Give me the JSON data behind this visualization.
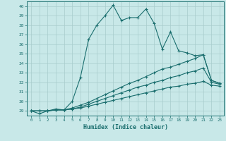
{
  "xlabel": "Humidex (Indice chaleur)",
  "xlim": [
    -0.5,
    23.5
  ],
  "ylim": [
    28.5,
    40.5
  ],
  "yticks": [
    29,
    30,
    31,
    32,
    33,
    34,
    35,
    36,
    37,
    38,
    39,
    40
  ],
  "xticks": [
    0,
    1,
    2,
    3,
    4,
    5,
    6,
    7,
    8,
    9,
    10,
    11,
    12,
    13,
    14,
    15,
    16,
    17,
    18,
    19,
    20,
    21,
    22,
    23
  ],
  "background_color": "#c8e8e8",
  "grid_color": "#a8cccc",
  "line_color": "#1a6e6e",
  "line1_y": [
    29.0,
    28.7,
    29.0,
    29.2,
    29.1,
    30.0,
    32.5,
    36.5,
    38.0,
    39.0,
    40.1,
    38.5,
    38.8,
    38.8,
    39.7,
    38.2,
    35.5,
    37.3,
    35.3,
    35.1,
    34.8,
    34.9,
    32.2,
    31.9
  ],
  "line2_y": [
    29.0,
    29.0,
    29.0,
    29.1,
    29.1,
    29.3,
    29.6,
    29.9,
    30.3,
    30.7,
    31.1,
    31.5,
    31.9,
    32.2,
    32.6,
    33.0,
    33.4,
    33.6,
    33.9,
    34.2,
    34.5,
    34.9,
    32.2,
    31.9
  ],
  "line3_y": [
    29.0,
    29.0,
    29.0,
    29.1,
    29.1,
    29.2,
    29.4,
    29.7,
    30.0,
    30.3,
    30.6,
    30.9,
    31.2,
    31.5,
    31.7,
    32.0,
    32.2,
    32.5,
    32.7,
    33.0,
    33.2,
    33.5,
    32.0,
    31.8
  ],
  "line4_y": [
    29.0,
    29.0,
    29.0,
    29.1,
    29.1,
    29.2,
    29.3,
    29.5,
    29.7,
    29.9,
    30.1,
    30.3,
    30.5,
    30.7,
    30.9,
    31.1,
    31.3,
    31.5,
    31.6,
    31.8,
    31.9,
    32.1,
    31.7,
    31.6
  ]
}
